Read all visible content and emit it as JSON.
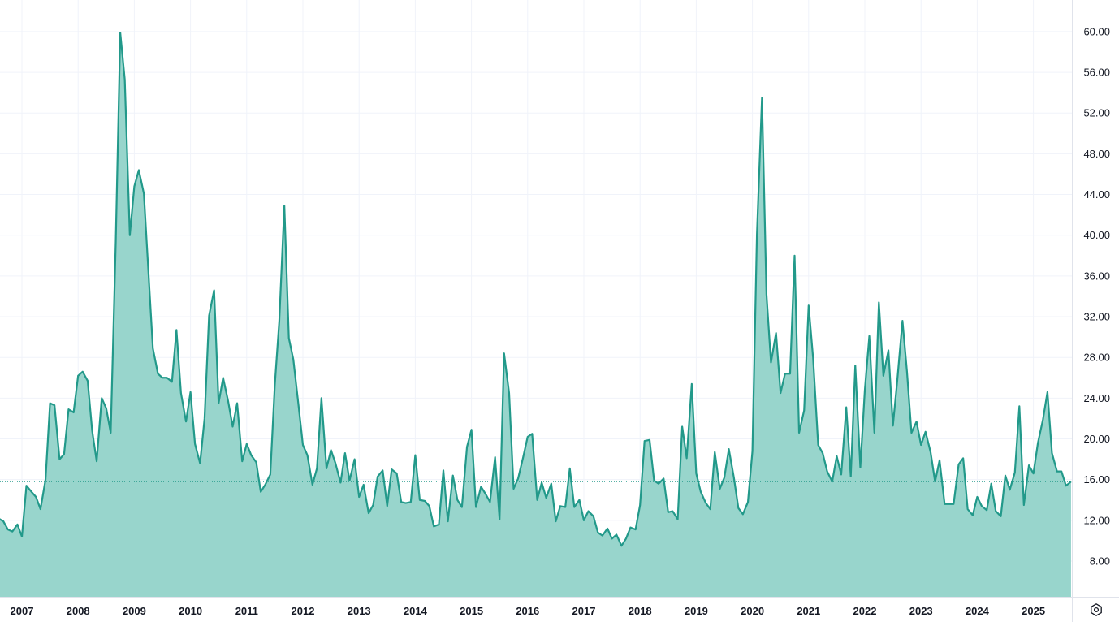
{
  "chart_data": {
    "type": "area",
    "title": "",
    "xlabel": "",
    "ylabel": "",
    "x_range": [
      2006.6,
      2025.8
    ],
    "ylim": [
      5,
      62
    ],
    "y_ticks": [
      "8.00",
      "12.00",
      "16.00",
      "20.00",
      "24.00",
      "28.00",
      "32.00",
      "36.00",
      "40.00",
      "44.00",
      "48.00",
      "52.00",
      "56.00",
      "60.00"
    ],
    "x_ticks": [
      "2007",
      "2008",
      "2009",
      "2010",
      "2011",
      "2012",
      "2013",
      "2014",
      "2015",
      "2016",
      "2017",
      "2018",
      "2019",
      "2020",
      "2021",
      "2022",
      "2023",
      "2024",
      "2025"
    ],
    "grid": true,
    "current_value_line": 15.8,
    "colors": {
      "line": "#22998a",
      "fill": "#98d5cc",
      "grid": "#f0f3fa",
      "axis": "#e0e3eb",
      "text": "#131722",
      "reference_line": "#22998a"
    },
    "series": [
      {
        "values": [
          [
            2006.58,
            12.2
          ],
          [
            2006.67,
            11.9
          ],
          [
            2006.75,
            11.1
          ],
          [
            2006.83,
            10.9
          ],
          [
            2006.92,
            11.6
          ],
          [
            2007.0,
            10.4
          ],
          [
            2007.08,
            15.4
          ],
          [
            2007.17,
            14.8
          ],
          [
            2007.25,
            14.3
          ],
          [
            2007.33,
            13.1
          ],
          [
            2007.42,
            16.0
          ],
          [
            2007.5,
            23.5
          ],
          [
            2007.58,
            23.3
          ],
          [
            2007.67,
            18.0
          ],
          [
            2007.75,
            18.5
          ],
          [
            2007.83,
            22.9
          ],
          [
            2007.92,
            22.6
          ],
          [
            2008.0,
            26.2
          ],
          [
            2008.08,
            26.6
          ],
          [
            2008.17,
            25.7
          ],
          [
            2008.25,
            20.8
          ],
          [
            2008.33,
            17.8
          ],
          [
            2008.42,
            24.0
          ],
          [
            2008.5,
            23.0
          ],
          [
            2008.58,
            20.6
          ],
          [
            2008.67,
            39.4
          ],
          [
            2008.75,
            59.9
          ],
          [
            2008.83,
            55.3
          ],
          [
            2008.92,
            40.0
          ],
          [
            2009.0,
            44.8
          ],
          [
            2009.08,
            46.4
          ],
          [
            2009.17,
            44.1
          ],
          [
            2009.25,
            36.5
          ],
          [
            2009.33,
            28.9
          ],
          [
            2009.42,
            26.4
          ],
          [
            2009.5,
            26.0
          ],
          [
            2009.58,
            26.0
          ],
          [
            2009.67,
            25.6
          ],
          [
            2009.75,
            30.7
          ],
          [
            2009.83,
            24.5
          ],
          [
            2009.92,
            21.7
          ],
          [
            2010.0,
            24.6
          ],
          [
            2010.08,
            19.5
          ],
          [
            2010.17,
            17.6
          ],
          [
            2010.25,
            22.0
          ],
          [
            2010.33,
            32.1
          ],
          [
            2010.42,
            34.6
          ],
          [
            2010.5,
            23.5
          ],
          [
            2010.58,
            26.0
          ],
          [
            2010.67,
            23.7
          ],
          [
            2010.75,
            21.2
          ],
          [
            2010.83,
            23.5
          ],
          [
            2010.92,
            17.8
          ],
          [
            2011.0,
            19.5
          ],
          [
            2011.08,
            18.4
          ],
          [
            2011.17,
            17.7
          ],
          [
            2011.25,
            14.8
          ],
          [
            2011.33,
            15.5
          ],
          [
            2011.42,
            16.5
          ],
          [
            2011.5,
            25.3
          ],
          [
            2011.58,
            31.6
          ],
          [
            2011.67,
            42.9
          ],
          [
            2011.75,
            29.9
          ],
          [
            2011.83,
            27.8
          ],
          [
            2011.92,
            23.4
          ],
          [
            2012.0,
            19.4
          ],
          [
            2012.08,
            18.4
          ],
          [
            2012.17,
            15.5
          ],
          [
            2012.25,
            17.1
          ],
          [
            2012.33,
            24.0
          ],
          [
            2012.42,
            17.1
          ],
          [
            2012.5,
            18.9
          ],
          [
            2012.58,
            17.6
          ],
          [
            2012.67,
            15.7
          ],
          [
            2012.75,
            18.6
          ],
          [
            2012.83,
            15.9
          ],
          [
            2012.92,
            18.0
          ],
          [
            2013.0,
            14.3
          ],
          [
            2013.08,
            15.5
          ],
          [
            2013.17,
            12.7
          ],
          [
            2013.25,
            13.5
          ],
          [
            2013.33,
            16.3
          ],
          [
            2013.42,
            16.9
          ],
          [
            2013.5,
            13.4
          ],
          [
            2013.58,
            17.0
          ],
          [
            2013.67,
            16.6
          ],
          [
            2013.75,
            13.8
          ],
          [
            2013.83,
            13.7
          ],
          [
            2013.92,
            13.8
          ],
          [
            2014.0,
            18.4
          ],
          [
            2014.08,
            14.0
          ],
          [
            2014.17,
            13.9
          ],
          [
            2014.25,
            13.4
          ],
          [
            2014.33,
            11.4
          ],
          [
            2014.42,
            11.6
          ],
          [
            2014.5,
            16.9
          ],
          [
            2014.58,
            11.9
          ],
          [
            2014.67,
            16.4
          ],
          [
            2014.75,
            14.0
          ],
          [
            2014.83,
            13.3
          ],
          [
            2014.92,
            19.2
          ],
          [
            2015.0,
            20.9
          ],
          [
            2015.08,
            13.3
          ],
          [
            2015.17,
            15.3
          ],
          [
            2015.25,
            14.6
          ],
          [
            2015.33,
            13.8
          ],
          [
            2015.42,
            18.2
          ],
          [
            2015.5,
            12.1
          ],
          [
            2015.58,
            28.4
          ],
          [
            2015.67,
            24.5
          ],
          [
            2015.75,
            15.1
          ],
          [
            2015.83,
            16.1
          ],
          [
            2015.92,
            18.2
          ],
          [
            2016.0,
            20.2
          ],
          [
            2016.08,
            20.5
          ],
          [
            2016.17,
            14.0
          ],
          [
            2016.25,
            15.7
          ],
          [
            2016.33,
            14.2
          ],
          [
            2016.42,
            15.6
          ],
          [
            2016.5,
            11.9
          ],
          [
            2016.58,
            13.4
          ],
          [
            2016.67,
            13.3
          ],
          [
            2016.75,
            17.1
          ],
          [
            2016.83,
            13.3
          ],
          [
            2016.92,
            14.0
          ],
          [
            2017.0,
            12.0
          ],
          [
            2017.08,
            12.9
          ],
          [
            2017.17,
            12.4
          ],
          [
            2017.25,
            10.8
          ],
          [
            2017.33,
            10.5
          ],
          [
            2017.42,
            11.2
          ],
          [
            2017.5,
            10.2
          ],
          [
            2017.58,
            10.6
          ],
          [
            2017.67,
            9.5
          ],
          [
            2017.75,
            10.2
          ],
          [
            2017.83,
            11.3
          ],
          [
            2017.92,
            11.1
          ],
          [
            2018.0,
            13.5
          ],
          [
            2018.08,
            19.8
          ],
          [
            2018.17,
            19.9
          ],
          [
            2018.25,
            15.9
          ],
          [
            2018.33,
            15.6
          ],
          [
            2018.42,
            16.1
          ],
          [
            2018.5,
            12.8
          ],
          [
            2018.58,
            12.9
          ],
          [
            2018.67,
            12.1
          ],
          [
            2018.75,
            21.2
          ],
          [
            2018.83,
            18.1
          ],
          [
            2018.92,
            25.4
          ],
          [
            2019.0,
            16.6
          ],
          [
            2019.08,
            14.8
          ],
          [
            2019.17,
            13.7
          ],
          [
            2019.25,
            13.1
          ],
          [
            2019.33,
            18.7
          ],
          [
            2019.42,
            15.1
          ],
          [
            2019.5,
            16.2
          ],
          [
            2019.58,
            19.0
          ],
          [
            2019.67,
            16.2
          ],
          [
            2019.75,
            13.2
          ],
          [
            2019.83,
            12.6
          ],
          [
            2019.92,
            13.8
          ],
          [
            2020.0,
            18.8
          ],
          [
            2020.08,
            40.1
          ],
          [
            2020.17,
            53.5
          ],
          [
            2020.25,
            34.2
          ],
          [
            2020.33,
            27.5
          ],
          [
            2020.42,
            30.4
          ],
          [
            2020.5,
            24.5
          ],
          [
            2020.58,
            26.4
          ],
          [
            2020.67,
            26.4
          ],
          [
            2020.75,
            38.0
          ],
          [
            2020.83,
            20.6
          ],
          [
            2020.92,
            22.8
          ],
          [
            2021.0,
            33.1
          ],
          [
            2021.08,
            27.9
          ],
          [
            2021.17,
            19.4
          ],
          [
            2021.25,
            18.6
          ],
          [
            2021.33,
            16.8
          ],
          [
            2021.42,
            15.8
          ],
          [
            2021.5,
            18.3
          ],
          [
            2021.58,
            16.5
          ],
          [
            2021.67,
            23.1
          ],
          [
            2021.75,
            16.3
          ],
          [
            2021.83,
            27.2
          ],
          [
            2021.92,
            17.2
          ],
          [
            2022.0,
            24.8
          ],
          [
            2022.08,
            30.1
          ],
          [
            2022.17,
            20.6
          ],
          [
            2022.25,
            33.4
          ],
          [
            2022.33,
            26.2
          ],
          [
            2022.42,
            28.7
          ],
          [
            2022.5,
            21.3
          ],
          [
            2022.58,
            25.9
          ],
          [
            2022.67,
            31.6
          ],
          [
            2022.75,
            26.6
          ],
          [
            2022.83,
            20.6
          ],
          [
            2022.92,
            21.7
          ],
          [
            2023.0,
            19.4
          ],
          [
            2023.08,
            20.7
          ],
          [
            2023.17,
            18.7
          ],
          [
            2023.25,
            15.8
          ],
          [
            2023.33,
            17.9
          ],
          [
            2023.42,
            13.6
          ],
          [
            2023.5,
            13.6
          ],
          [
            2023.58,
            13.6
          ],
          [
            2023.67,
            17.5
          ],
          [
            2023.75,
            18.1
          ],
          [
            2023.83,
            13.1
          ],
          [
            2023.92,
            12.5
          ],
          [
            2024.0,
            14.3
          ],
          [
            2024.08,
            13.4
          ],
          [
            2024.17,
            13.0
          ],
          [
            2024.25,
            15.6
          ],
          [
            2024.33,
            12.9
          ],
          [
            2024.42,
            12.4
          ],
          [
            2024.5,
            16.4
          ],
          [
            2024.58,
            15.0
          ],
          [
            2024.67,
            16.7
          ],
          [
            2024.75,
            23.2
          ],
          [
            2024.83,
            13.5
          ],
          [
            2024.92,
            17.4
          ],
          [
            2025.0,
            16.6
          ],
          [
            2025.08,
            19.6
          ],
          [
            2025.17,
            21.9
          ],
          [
            2025.25,
            24.6
          ],
          [
            2025.33,
            18.6
          ],
          [
            2025.42,
            16.8
          ],
          [
            2025.5,
            16.8
          ],
          [
            2025.58,
            15.4
          ],
          [
            2025.67,
            15.8
          ]
        ]
      }
    ]
  },
  "controls": {
    "settings_icon": "settings-hexagon-icon"
  }
}
